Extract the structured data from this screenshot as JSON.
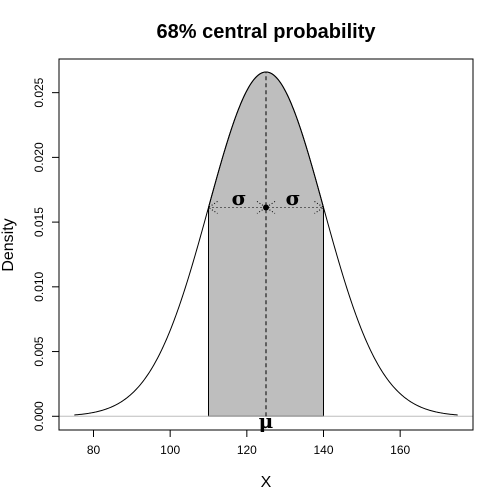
{
  "chart_data": {
    "type": "area",
    "title": "68% central probability",
    "xlabel": "X",
    "ylabel": "Density",
    "distribution": "normal",
    "mean": 125,
    "sd": 15,
    "x_range": [
      75,
      175
    ],
    "shaded_interval": [
      110,
      140
    ],
    "xlim": [
      71,
      179
    ],
    "ylim": [
      -0.00106,
      0.0276
    ],
    "x_ticks": [
      "80",
      "100",
      "120",
      "140",
      "160"
    ],
    "y_ticks": [
      "0.000",
      "0.005",
      "0.010",
      "0.015",
      "0.020",
      "0.025"
    ],
    "annotations": {
      "sigma_left": "σ",
      "sigma_right": "σ",
      "mu": "μ"
    },
    "colors": {
      "shade_fill": "#bebebe",
      "baseline": "#bebebe",
      "curve": "#000000"
    }
  }
}
